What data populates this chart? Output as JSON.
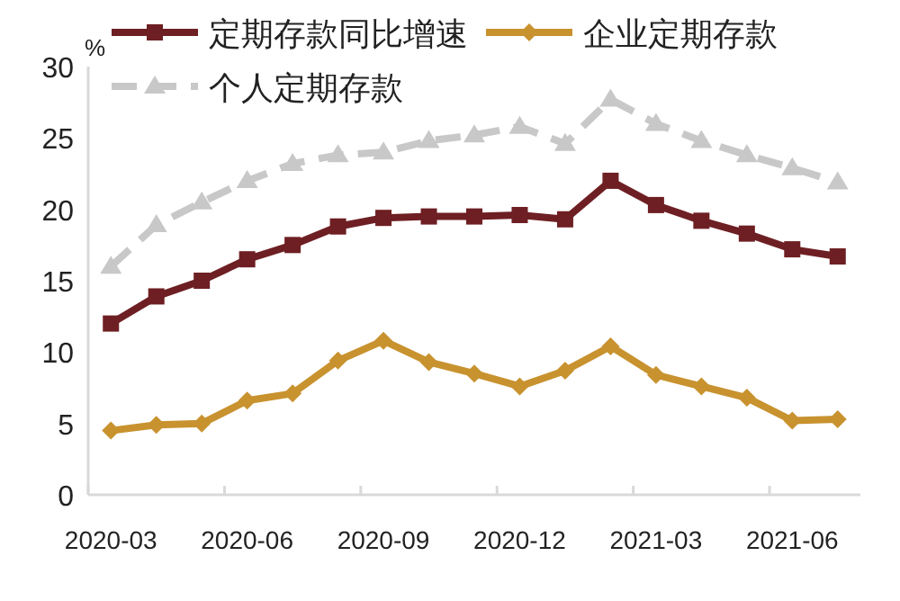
{
  "chart_data": {
    "type": "line",
    "ylabel": "%",
    "categories": [
      "2020-03",
      null,
      null,
      "2020-06",
      null,
      null,
      "2020-09",
      null,
      null,
      "2020-12",
      null,
      null,
      "2021-03",
      null,
      null,
      "2021-06",
      null
    ],
    "series": [
      {
        "name": "定期存款同比增速",
        "color": "#6e1f23",
        "marker": "square",
        "line_style": "solid",
        "values": [
          12.0,
          13.9,
          15.0,
          16.5,
          17.5,
          18.8,
          19.4,
          19.5,
          19.5,
          19.6,
          19.3,
          22.0,
          20.3,
          19.2,
          18.3,
          17.2,
          16.7
        ]
      },
      {
        "name": "企业定期存款",
        "color": "#c8922f",
        "marker": "diamond",
        "line_style": "solid",
        "values": [
          4.5,
          4.9,
          5.0,
          6.6,
          7.1,
          9.4,
          10.8,
          9.3,
          8.5,
          7.6,
          8.7,
          10.4,
          8.4,
          7.6,
          6.8,
          5.2,
          5.3
        ]
      },
      {
        "name": "个人定期存款",
        "color": "#c8c8c8",
        "marker": "triangle",
        "line_style": "dashed",
        "values": [
          16.0,
          18.9,
          20.5,
          22.0,
          23.2,
          23.8,
          24.0,
          24.8,
          25.2,
          25.8,
          24.6,
          27.7,
          26.0,
          24.8,
          23.8,
          22.9,
          21.9
        ]
      }
    ],
    "ylim": [
      0,
      30
    ],
    "yticks": [
      0,
      5,
      10,
      15,
      20,
      25,
      30
    ],
    "grid": false,
    "legend": "top"
  }
}
